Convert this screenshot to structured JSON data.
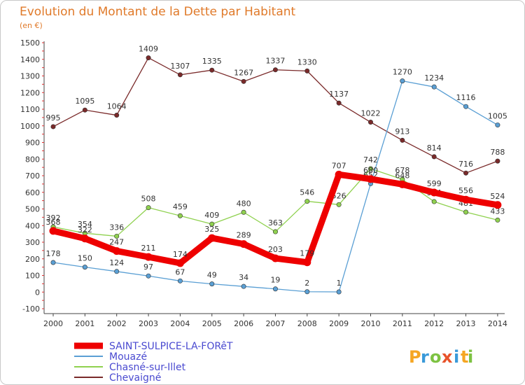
{
  "chart_data": {
    "type": "line",
    "title": "Evolution du Montant de la Dette par Habitant",
    "unit_label": "(en €)",
    "x": [
      "2000",
      "2001",
      "2002",
      "2003",
      "2004",
      "2005",
      "2006",
      "2007",
      "2008",
      "2009",
      "2010",
      "2011",
      "2012",
      "2013",
      "2014"
    ],
    "y_ticks": [
      "-100",
      "0",
      "100",
      "200",
      "300",
      "400",
      "500",
      "600",
      "700",
      "800",
      "900",
      "1000",
      "1100",
      "1200",
      "1300",
      "1400",
      "1500"
    ],
    "ylim": [
      -100,
      1500
    ],
    "grid": false,
    "legend_position": "bottom-left",
    "series": [
      {
        "name": "Chevaigné",
        "color": "#7a2a2a",
        "values": [
          995,
          1095,
          1064,
          1409,
          1307,
          1335,
          1267,
          1337,
          1330,
          1137,
          1022,
          913,
          814,
          716,
          788
        ],
        "labels": [
          "995",
          "1095",
          "1064",
          "1409",
          "1307",
          "1335",
          "1267",
          "1337",
          "1330",
          "1137",
          "1022",
          "913",
          "814",
          "716",
          "788"
        ]
      },
      {
        "name": "Chasné-sur-Illet",
        "color": "#8fd14f",
        "values": [
          392,
          354,
          336,
          508,
          459,
          409,
          480,
          363,
          546,
          526,
          742,
          678,
          544,
          481,
          433
        ],
        "labels": [
          "392",
          "354",
          "336",
          "508",
          "459",
          "409",
          "480",
          "363",
          "546",
          "526",
          "742",
          "678",
          "544",
          "481",
          "433"
        ]
      },
      {
        "name": "Mouazé",
        "color": "#5a9fd4",
        "values": [
          178,
          150,
          124,
          97,
          67,
          49,
          34,
          19,
          2,
          1,
          652,
          1270,
          1234,
          1116,
          1005
        ],
        "labels": [
          "178",
          "150",
          "124",
          "97",
          "67",
          "49",
          "34",
          "19",
          "2",
          "1",
          "652",
          "1270",
          "1234",
          "1116",
          "1005"
        ]
      },
      {
        "name": "SAINT-SULPICE-LA-FORêT",
        "color": "#ee0000",
        "values": [
          368,
          322,
          247,
          211,
          174,
          325,
          289,
          203,
          179,
          707,
          680,
          648,
          599,
          556,
          524
        ],
        "labels": [
          "368",
          "322",
          "247",
          "211",
          "174",
          "325",
          "289",
          "203",
          "179",
          "707",
          "680",
          "648",
          "599",
          "556",
          "524"
        ]
      }
    ],
    "legend": [
      {
        "name": "SAINT-SULPICE-LA-FORêT",
        "color": "#ee0000"
      },
      {
        "name": "Mouazé",
        "color": "#5a9fd4"
      },
      {
        "name": "Chasné-sur-Illet",
        "color": "#8fd14f"
      },
      {
        "name": "Chevaigné",
        "color": "#7a2a2a"
      }
    ],
    "legend_text_color": "#4a4ad0"
  },
  "brand": {
    "letters": [
      "P",
      "r",
      "o",
      "x",
      "i",
      "t",
      "i"
    ],
    "colors": [
      "#f5a623",
      "#3a9ad9",
      "#7dc242",
      "#e8532a",
      "#3a9ad9",
      "#f5a623",
      "#7dc242"
    ]
  }
}
